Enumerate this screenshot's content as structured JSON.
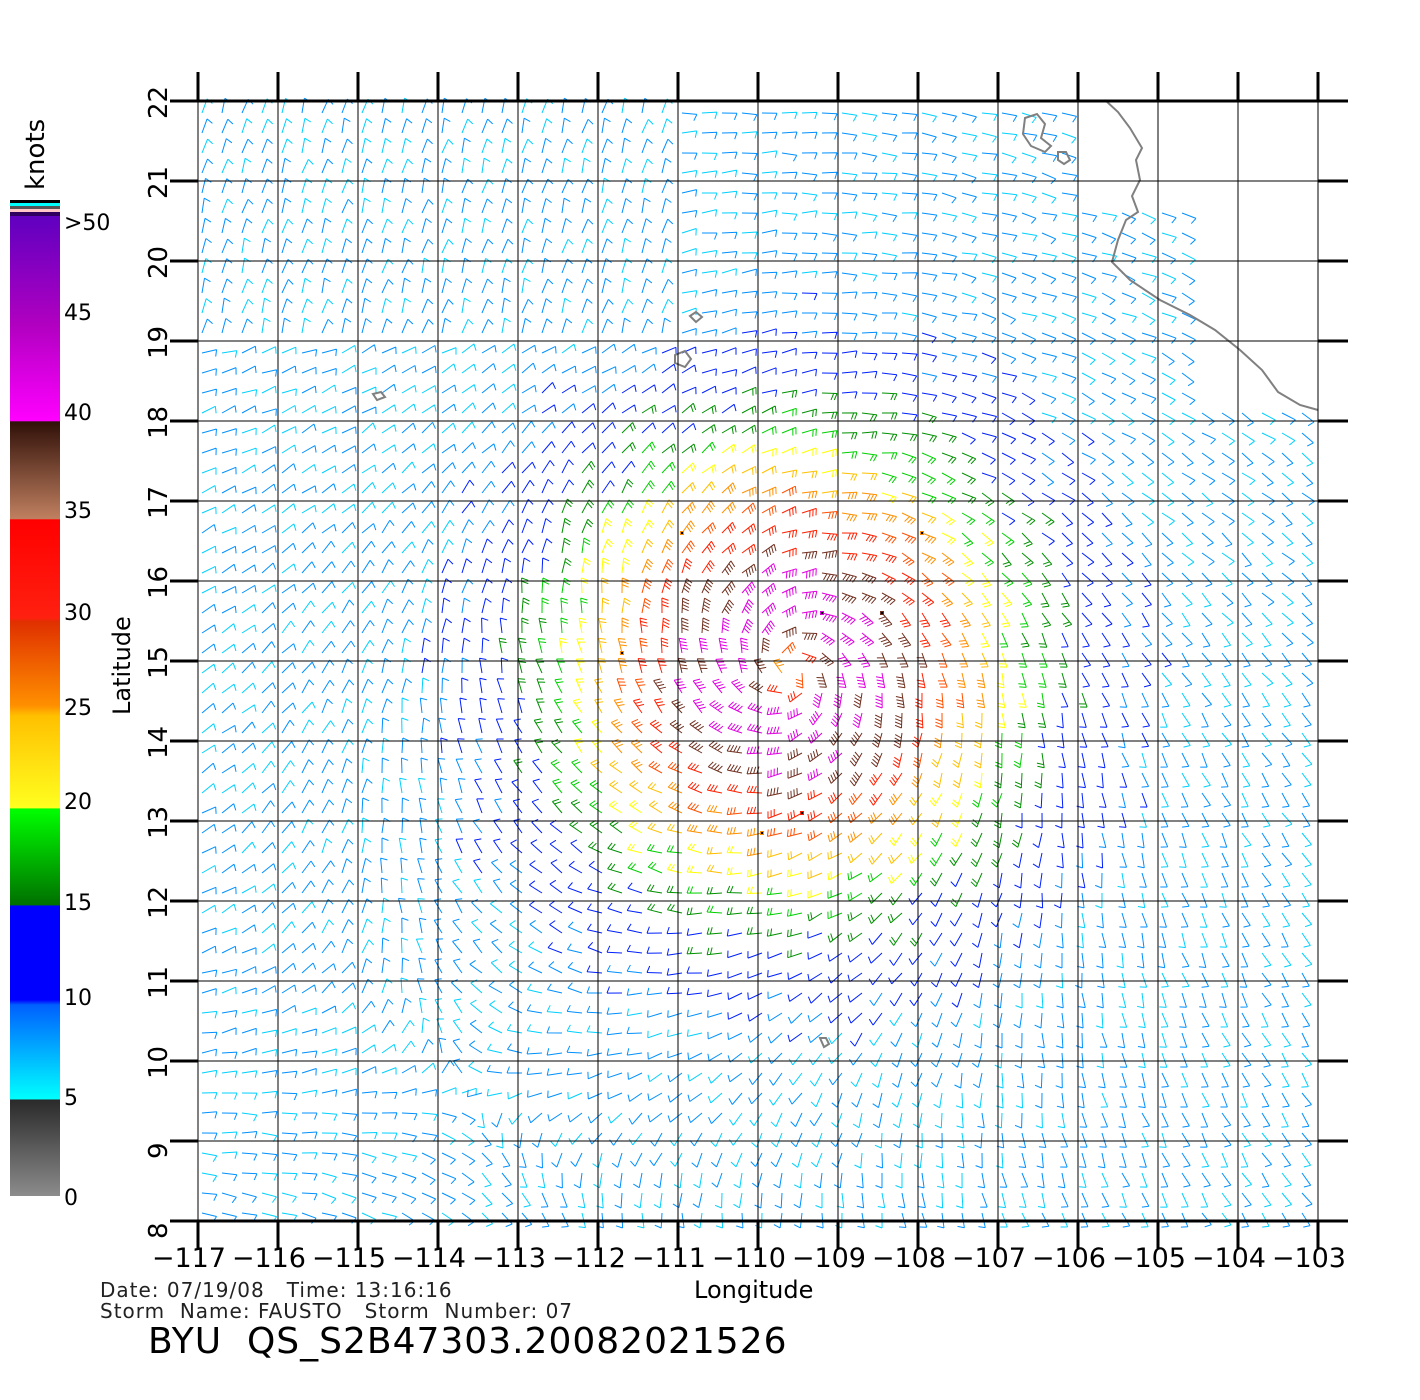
{
  "axes": {
    "xlabel": "Longitude",
    "ylabel": "Latitude",
    "lon_ticks": [
      "−117",
      "−116",
      "−115",
      "−114",
      "−113",
      "−112",
      "−111",
      "−110",
      "−109",
      "−108",
      "−107",
      "−106",
      "−105",
      "−104",
      "−103"
    ],
    "lat_ticks": [
      "22",
      "21",
      "20",
      "19",
      "18",
      "17",
      "16",
      "15",
      "14",
      "13",
      "12",
      "11",
      "10",
      "9",
      "8"
    ],
    "lon_range": [
      -117,
      -103
    ],
    "lat_range": [
      8,
      22
    ]
  },
  "colorbar": {
    "unit": "knots",
    "labels": [
      ">50",
      "45",
      "40",
      "35",
      "30",
      "25",
      "20",
      "15",
      "10",
      "5",
      "0"
    ],
    "colors": {
      "calm": "#808080",
      "light": "#00ffff",
      "blue": "#0000ff",
      "green": "#00c000",
      "yellow": "#ffd700",
      "orange": "#ff8000",
      "red": "#ff2000",
      "brown": "#5a2a10",
      "magenta": "#ff00ff",
      "purple": "#6000c0"
    }
  },
  "meta": {
    "date_line": "Date: 07/19/08   Time: 13:16:16",
    "storm_line": "Storm  Name: FAUSTO   Storm  Number: 07",
    "title": "BYU  QS_S2B47303.20082021526"
  },
  "chart_data": {
    "type": "wind-barb-map",
    "title": "BYU  QS_S2B47303.20082021526",
    "xlabel": "Longitude",
    "ylabel": "Latitude",
    "xlim": [
      -117,
      -103
    ],
    "ylim": [
      8,
      22
    ],
    "colorbar_range_knots": [
      0,
      50
    ]
  }
}
